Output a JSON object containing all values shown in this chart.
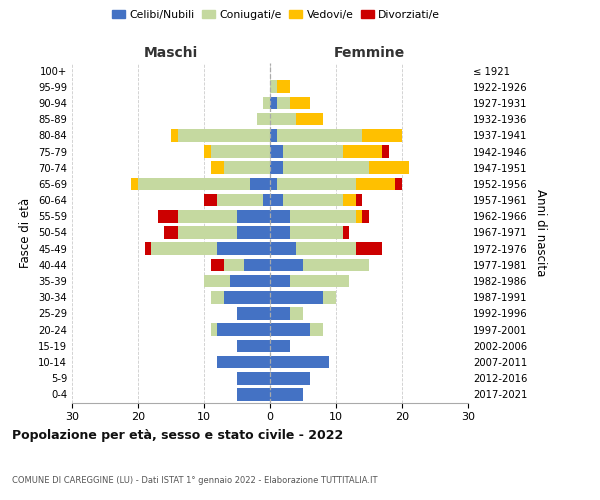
{
  "age_groups": [
    "0-4",
    "5-9",
    "10-14",
    "15-19",
    "20-24",
    "25-29",
    "30-34",
    "35-39",
    "40-44",
    "45-49",
    "50-54",
    "55-59",
    "60-64",
    "65-69",
    "70-74",
    "75-79",
    "80-84",
    "85-89",
    "90-94",
    "95-99",
    "100+"
  ],
  "birth_years": [
    "2017-2021",
    "2012-2016",
    "2007-2011",
    "2002-2006",
    "1997-2001",
    "1992-1996",
    "1987-1991",
    "1982-1986",
    "1977-1981",
    "1972-1976",
    "1967-1971",
    "1962-1966",
    "1957-1961",
    "1952-1956",
    "1947-1951",
    "1942-1946",
    "1937-1941",
    "1932-1936",
    "1927-1931",
    "1922-1926",
    "≤ 1921"
  ],
  "colors": {
    "celibi": "#4472c4",
    "coniugati": "#c5d9a0",
    "vedovi": "#ffc000",
    "divorziati": "#cc0000"
  },
  "males": {
    "celibi": [
      5,
      5,
      8,
      5,
      8,
      5,
      7,
      6,
      4,
      8,
      5,
      5,
      1,
      3,
      0,
      0,
      0,
      0,
      0,
      0,
      0
    ],
    "coniugati": [
      0,
      0,
      0,
      0,
      1,
      0,
      2,
      4,
      3,
      10,
      9,
      9,
      7,
      17,
      7,
      9,
      14,
      2,
      1,
      0,
      0
    ],
    "vedovi": [
      0,
      0,
      0,
      0,
      0,
      0,
      0,
      0,
      0,
      0,
      0,
      0,
      0,
      1,
      2,
      1,
      1,
      0,
      0,
      0,
      0
    ],
    "divorziati": [
      0,
      0,
      0,
      0,
      0,
      0,
      0,
      0,
      2,
      1,
      2,
      3,
      2,
      0,
      0,
      0,
      0,
      0,
      0,
      0,
      0
    ]
  },
  "females": {
    "nubili": [
      5,
      6,
      9,
      3,
      6,
      3,
      8,
      3,
      5,
      4,
      3,
      3,
      2,
      1,
      2,
      2,
      1,
      0,
      1,
      0,
      0
    ],
    "coniugate": [
      0,
      0,
      0,
      0,
      2,
      2,
      2,
      9,
      10,
      9,
      8,
      10,
      9,
      12,
      13,
      9,
      13,
      4,
      2,
      1,
      0
    ],
    "vedove": [
      0,
      0,
      0,
      0,
      0,
      0,
      0,
      0,
      0,
      0,
      0,
      1,
      2,
      6,
      6,
      6,
      6,
      4,
      3,
      2,
      0
    ],
    "divorziate": [
      0,
      0,
      0,
      0,
      0,
      0,
      0,
      0,
      0,
      4,
      1,
      1,
      1,
      1,
      0,
      1,
      0,
      0,
      0,
      0,
      0
    ]
  },
  "xlim": 30,
  "title": "Popolazione per età, sesso e stato civile - 2022",
  "subtitle": "COMUNE DI CAREGGINE (LU) - Dati ISTAT 1° gennaio 2022 - Elaborazione TUTTITALIA.IT",
  "ylabel_left": "Fasce di età",
  "ylabel_right": "Anni di nascita",
  "xlabel_left": "Maschi",
  "xlabel_right": "Femmine",
  "legend_labels": [
    "Celibi/Nubili",
    "Coniugati/e",
    "Vedovi/e",
    "Divorziati/e"
  ],
  "bg_color": "#ffffff",
  "grid_color": "#cccccc"
}
